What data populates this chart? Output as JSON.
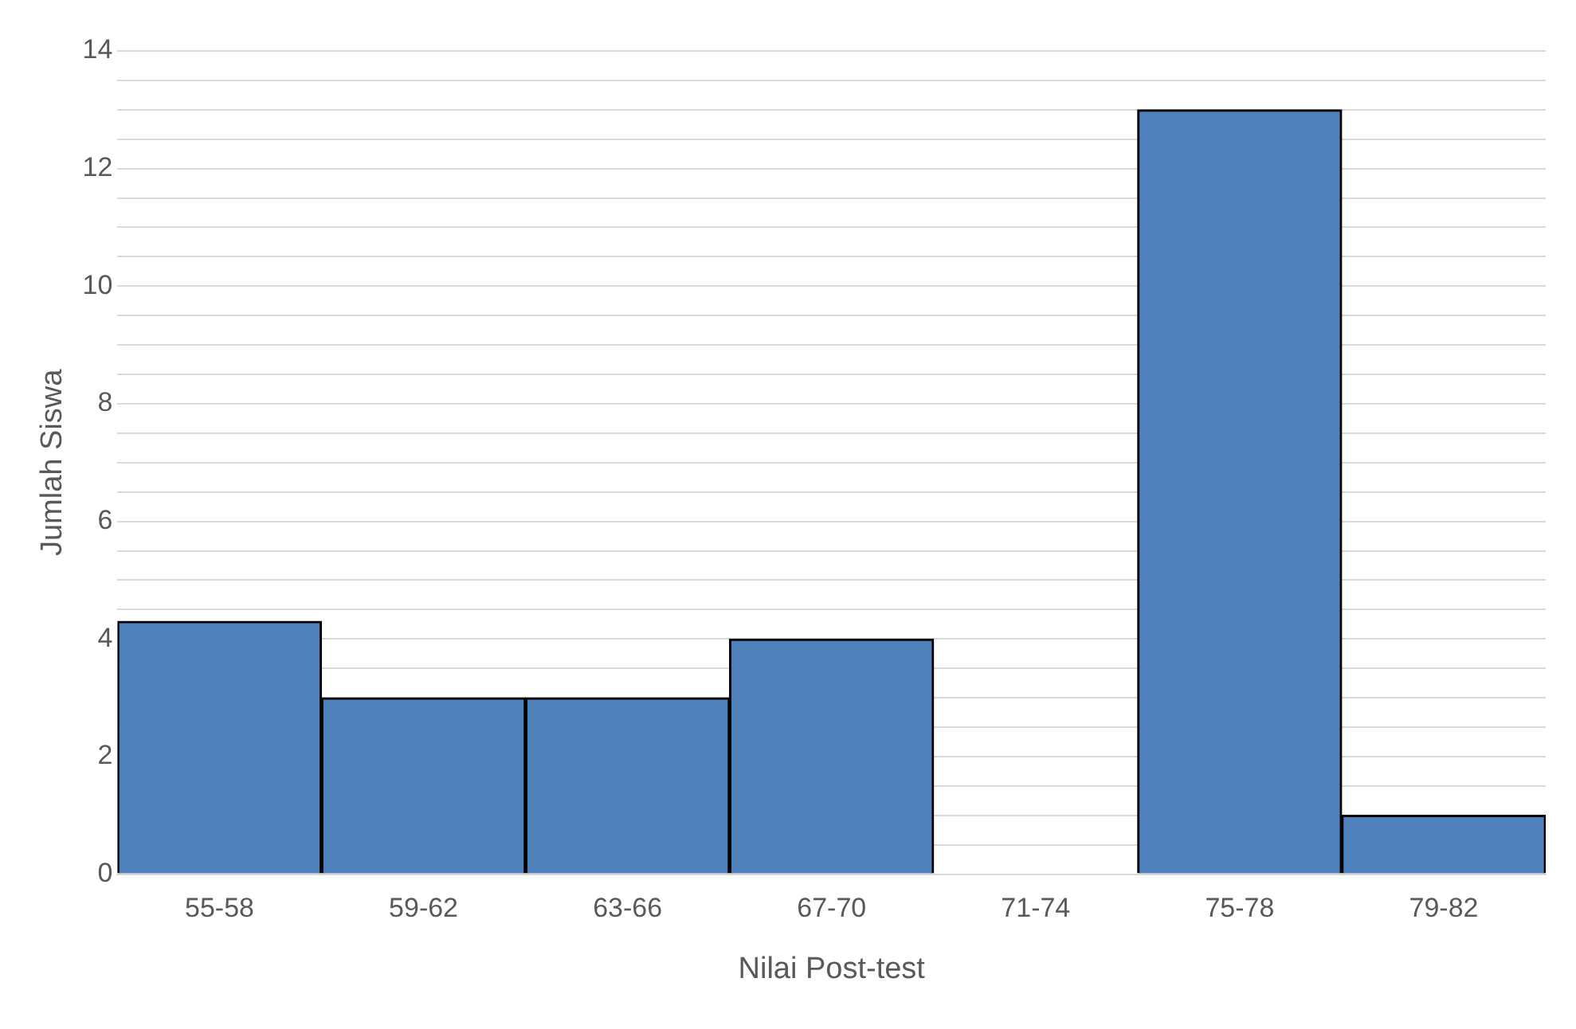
{
  "chart_data": {
    "type": "bar",
    "xlabel": "Nilai Post-test",
    "ylabel": "Jumlah Siswa",
    "categories": [
      "55-58",
      "59-62",
      "63-66",
      "67-70",
      "71-74",
      "75-78",
      "79-82"
    ],
    "values": [
      4.3,
      3,
      3,
      4,
      0,
      13,
      1
    ],
    "color": "#4f81bd",
    "ylim": [
      0,
      14
    ],
    "yticks": [
      0,
      {
        "value": 0.5,
        "label": null
      },
      2,
      {
        "value": 1,
        "label": null
      },
      {
        "value": 1.5,
        "label": null
      },
      {
        "value": 2.5,
        "label": null
      },
      {
        "value": 3,
        "label": null
      },
      {
        "value": 3.5,
        "label": null
      },
      4,
      {
        "value": 4.5,
        "label": null
      },
      {
        "value": 5,
        "label": null
      },
      {
        "value": 5.5,
        "label": null
      },
      6,
      {
        "value": 6.5,
        "label": null
      },
      {
        "value": 7,
        "label": null
      },
      {
        "value": 7.5,
        "label": null
      },
      8,
      {
        "value": 8.5,
        "label": null
      },
      {
        "value": 9,
        "label": null
      },
      {
        "value": 9.5,
        "label": null
      },
      10,
      {
        "value": 10.5,
        "label": null
      },
      {
        "value": 11,
        "label": null
      },
      {
        "value": 11.5,
        "label": null
      },
      12,
      {
        "value": 12.5,
        "label": null
      },
      {
        "value": 13,
        "label": null
      },
      {
        "value": 13.5,
        "label": null
      },
      14
    ],
    "grid": "y",
    "legend": false
  }
}
